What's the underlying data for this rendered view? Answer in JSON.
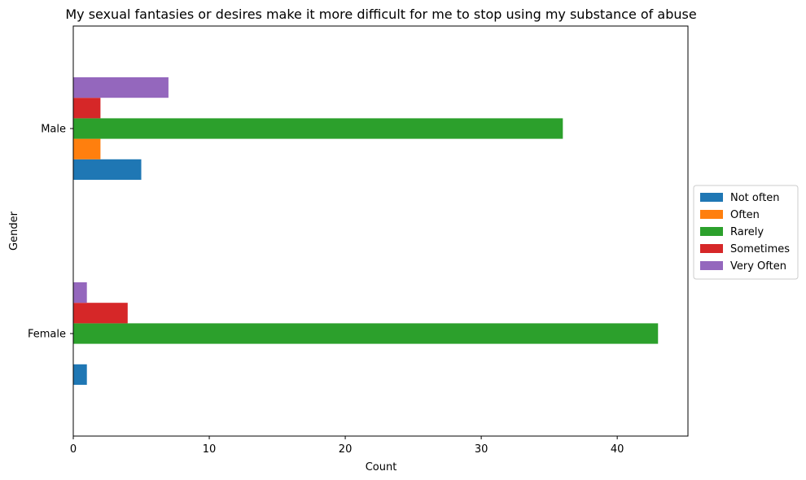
{
  "chart_data": {
    "type": "bar",
    "orientation": "horizontal",
    "title": "My sexual fantasies or desires make it more difficult for me to stop using my substance of abuse",
    "xlabel": "Count",
    "ylabel": "Gender",
    "categories": [
      "Female",
      "Male"
    ],
    "xlim": [
      0,
      45.2
    ],
    "xticks": [
      0,
      10,
      20,
      30,
      40
    ],
    "legend_position": "center-right (outside plot)",
    "series": [
      {
        "name": "Not often",
        "color": "#1f77b4",
        "values": [
          1,
          5
        ]
      },
      {
        "name": "Often",
        "color": "#ff7f0e",
        "values": [
          0,
          2
        ]
      },
      {
        "name": "Rarely",
        "color": "#2ca02c",
        "values": [
          43,
          36
        ]
      },
      {
        "name": "Sometimes",
        "color": "#d62728",
        "values": [
          4,
          2
        ]
      },
      {
        "name": "Very Often",
        "color": "#9467bd",
        "values": [
          1,
          7
        ]
      }
    ]
  }
}
